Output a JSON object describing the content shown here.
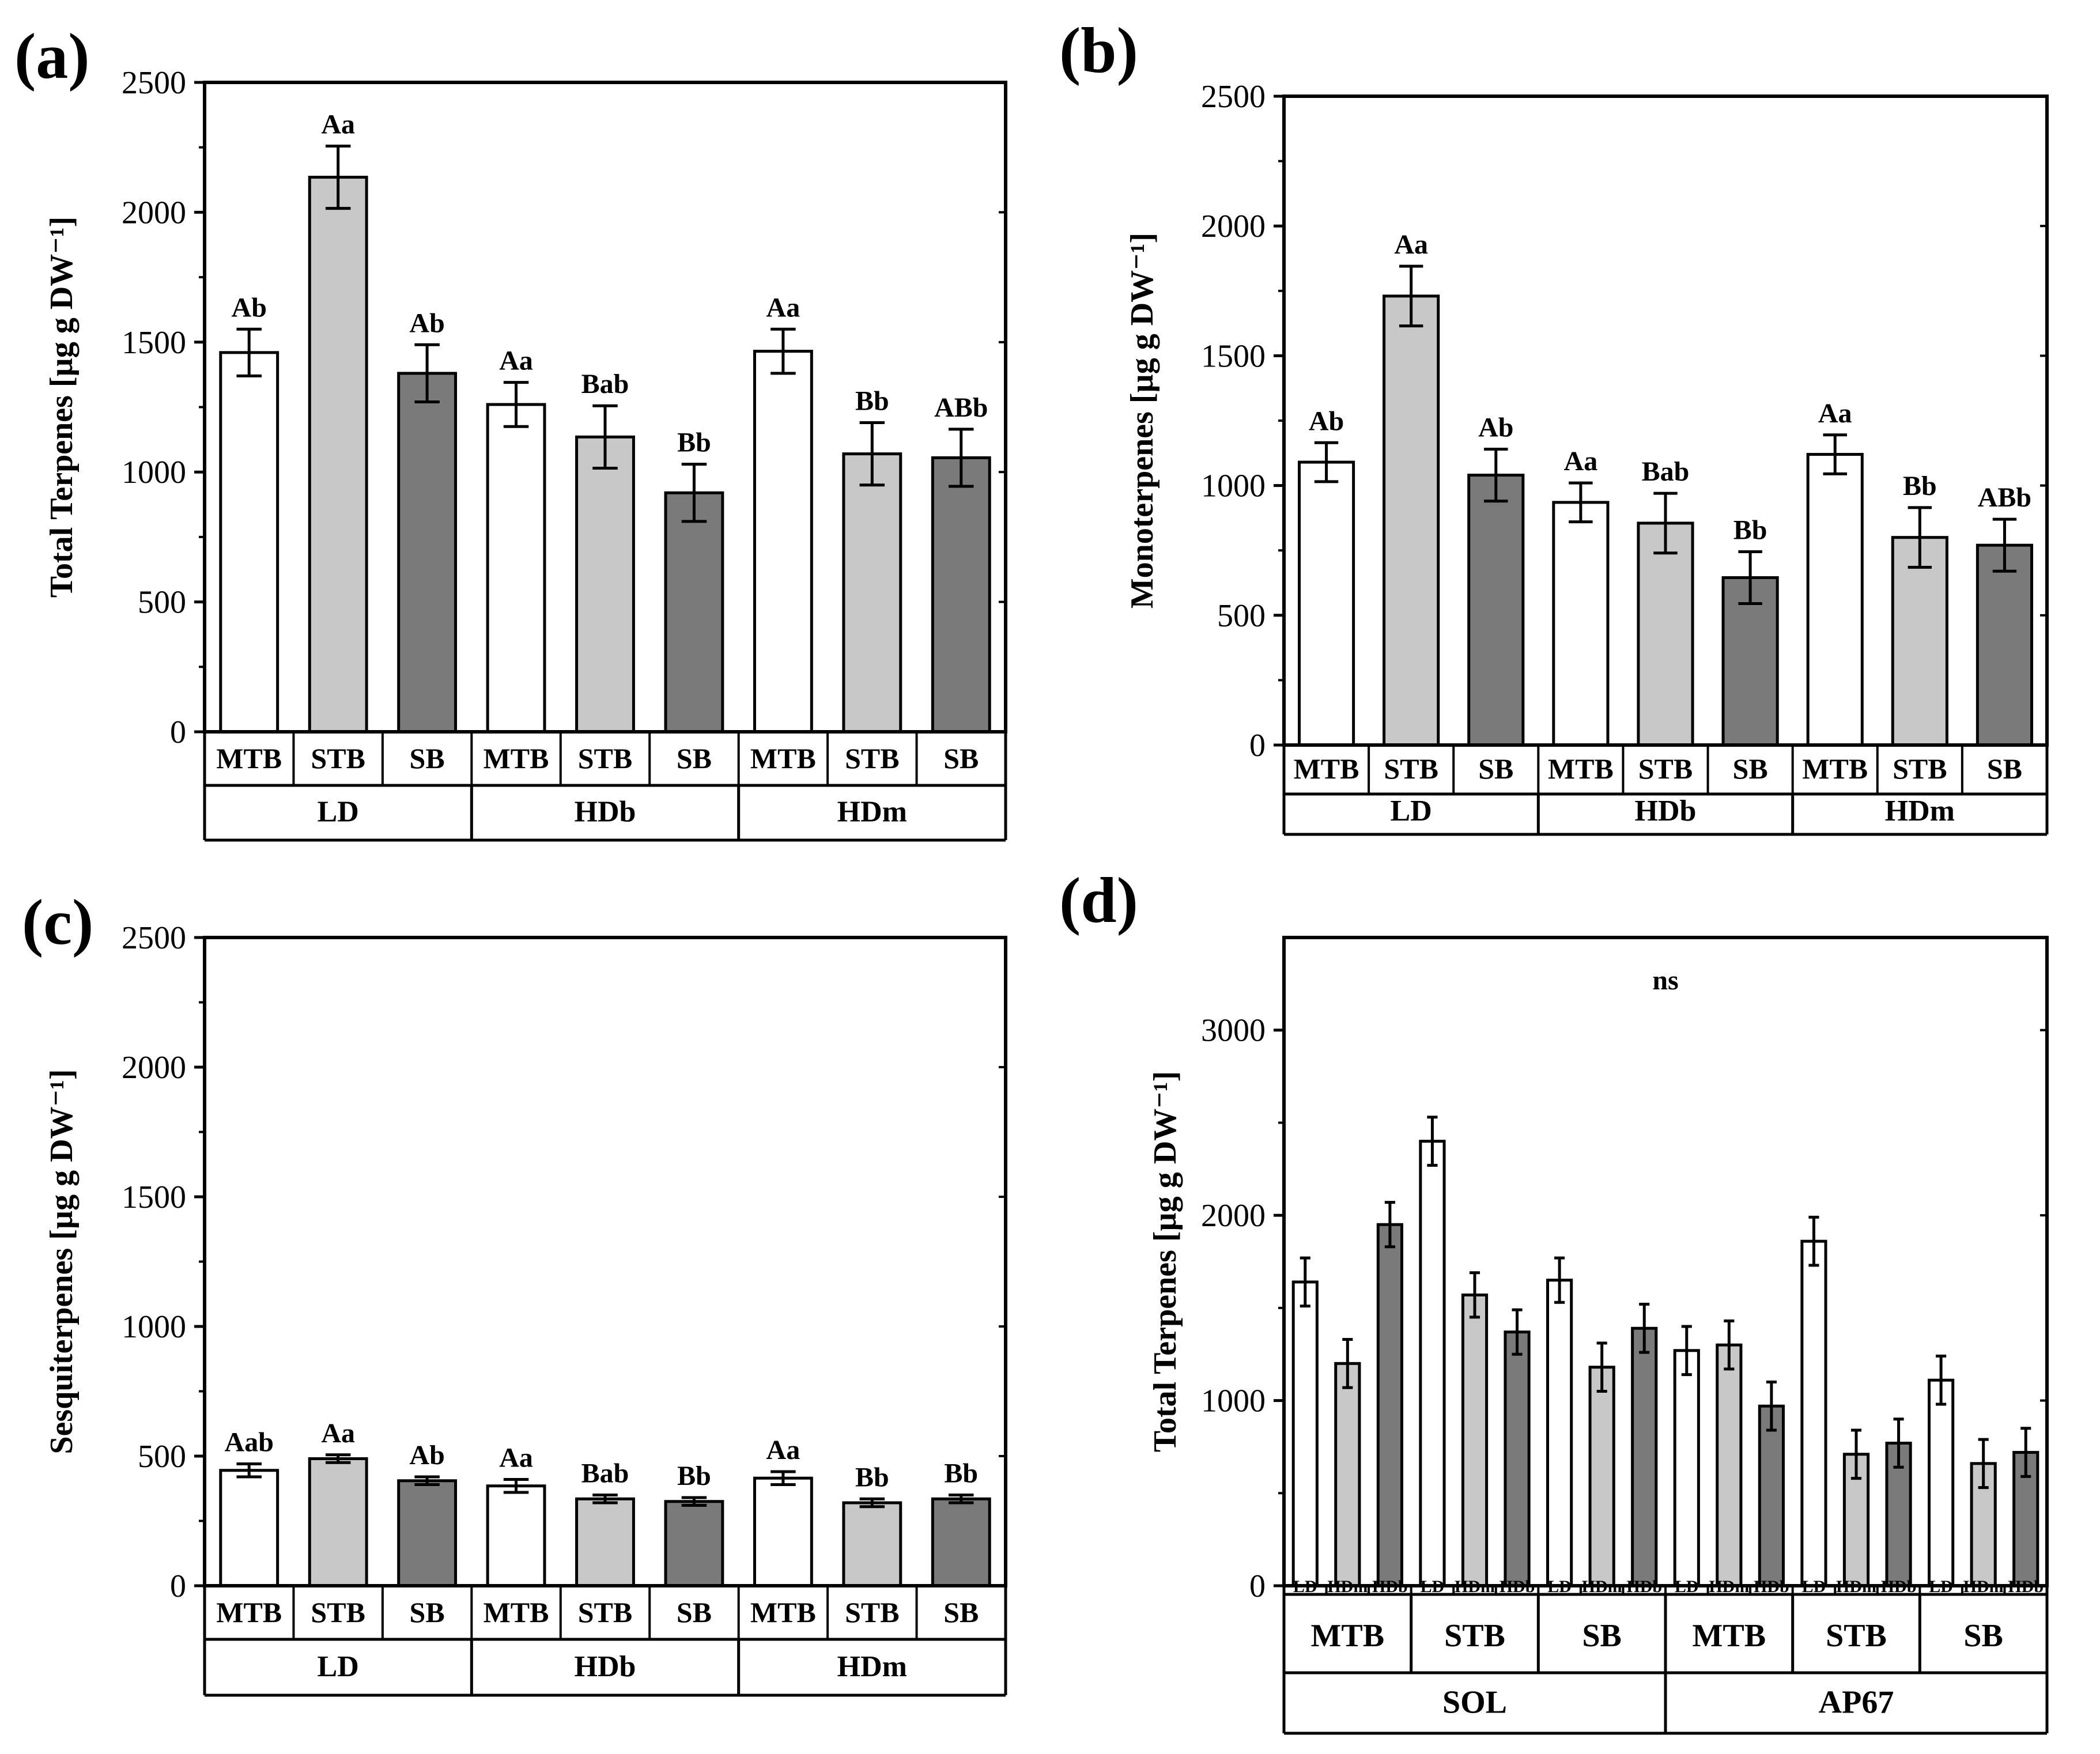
{
  "colors": {
    "white_bar": "#ffffff",
    "light_bar": "#c8c8c8",
    "dark_bar": "#7a7a7a",
    "axis": "#000000"
  },
  "chart_data": [
    {
      "id": "a",
      "panel_label": "(a)",
      "type": "bar",
      "ylabel": "Total Terpenes [µg g DW⁻¹]",
      "ylim": [
        0,
        2500
      ],
      "yticks": [
        0,
        500,
        1000,
        1500,
        2000,
        2500
      ],
      "bars": [
        {
          "group": "LD",
          "category": "MTB",
          "value": 1460,
          "error": 90,
          "sig": "Ab",
          "shade": "white"
        },
        {
          "group": "LD",
          "category": "STB",
          "value": 2135,
          "error": 120,
          "sig": "Aa",
          "shade": "light"
        },
        {
          "group": "LD",
          "category": "SB",
          "value": 1380,
          "error": 110,
          "sig": "Ab",
          "shade": "dark"
        },
        {
          "group": "HDb",
          "category": "MTB",
          "value": 1260,
          "error": 85,
          "sig": "Aa",
          "shade": "white"
        },
        {
          "group": "HDb",
          "category": "STB",
          "value": 1135,
          "error": 120,
          "sig": "Bab",
          "shade": "light"
        },
        {
          "group": "HDb",
          "category": "SB",
          "value": 920,
          "error": 110,
          "sig": "Bb",
          "shade": "dark"
        },
        {
          "group": "HDm",
          "category": "MTB",
          "value": 1465,
          "error": 85,
          "sig": "Aa",
          "shade": "white"
        },
        {
          "group": "HDm",
          "category": "STB",
          "value": 1070,
          "error": 120,
          "sig": "Bb",
          "shade": "light"
        },
        {
          "group": "HDm",
          "category": "SB",
          "value": 1055,
          "error": 110,
          "sig": "ABb",
          "shade": "dark"
        }
      ],
      "groups": [
        "LD",
        "HDb",
        "HDm"
      ]
    },
    {
      "id": "b",
      "panel_label": "(b)",
      "type": "bar",
      "ylabel": "Monoterpenes [µg g DW⁻¹]",
      "ylim": [
        0,
        2500
      ],
      "yticks": [
        0,
        500,
        1000,
        1500,
        2000,
        2500
      ],
      "bars": [
        {
          "group": "LD",
          "category": "MTB",
          "value": 1090,
          "error": 75,
          "sig": "Ab",
          "shade": "white"
        },
        {
          "group": "LD",
          "category": "STB",
          "value": 1730,
          "error": 115,
          "sig": "Aa",
          "shade": "light"
        },
        {
          "group": "LD",
          "category": "SB",
          "value": 1040,
          "error": 100,
          "sig": "Ab",
          "shade": "dark"
        },
        {
          "group": "HDb",
          "category": "MTB",
          "value": 935,
          "error": 75,
          "sig": "Aa",
          "shade": "white"
        },
        {
          "group": "HDb",
          "category": "STB",
          "value": 855,
          "error": 115,
          "sig": "Bab",
          "shade": "light"
        },
        {
          "group": "HDb",
          "category": "SB",
          "value": 645,
          "error": 100,
          "sig": "Bb",
          "shade": "dark"
        },
        {
          "group": "HDm",
          "category": "MTB",
          "value": 1120,
          "error": 75,
          "sig": "Aa",
          "shade": "white"
        },
        {
          "group": "HDm",
          "category": "STB",
          "value": 800,
          "error": 115,
          "sig": "Bb",
          "shade": "light"
        },
        {
          "group": "HDm",
          "category": "SB",
          "value": 770,
          "error": 100,
          "sig": "ABb",
          "shade": "dark"
        }
      ],
      "groups": [
        "LD",
        "HDb",
        "HDm"
      ]
    },
    {
      "id": "c",
      "panel_label": "(c)",
      "type": "bar",
      "ylabel": "Sesquiterpenes [µg g DW⁻¹]",
      "ylim": [
        0,
        2500
      ],
      "yticks": [
        0,
        500,
        1000,
        1500,
        2000,
        2500
      ],
      "bars": [
        {
          "group": "LD",
          "category": "MTB",
          "value": 445,
          "error": 25,
          "sig": "Aab",
          "shade": "white"
        },
        {
          "group": "LD",
          "category": "STB",
          "value": 490,
          "error": 15,
          "sig": "Aa",
          "shade": "light"
        },
        {
          "group": "LD",
          "category": "SB",
          "value": 405,
          "error": 15,
          "sig": "Ab",
          "shade": "dark"
        },
        {
          "group": "HDb",
          "category": "MTB",
          "value": 385,
          "error": 25,
          "sig": "Aa",
          "shade": "white"
        },
        {
          "group": "HDb",
          "category": "STB",
          "value": 335,
          "error": 15,
          "sig": "Bab",
          "shade": "light"
        },
        {
          "group": "HDb",
          "category": "SB",
          "value": 325,
          "error": 15,
          "sig": "Bb",
          "shade": "dark"
        },
        {
          "group": "HDm",
          "category": "MTB",
          "value": 415,
          "error": 25,
          "sig": "Aa",
          "shade": "white"
        },
        {
          "group": "HDm",
          "category": "STB",
          "value": 320,
          "error": 15,
          "sig": "Bb",
          "shade": "light"
        },
        {
          "group": "HDm",
          "category": "SB",
          "value": 335,
          "error": 15,
          "sig": "Bb",
          "shade": "dark"
        }
      ],
      "groups": [
        "LD",
        "HDb",
        "HDm"
      ]
    },
    {
      "id": "d",
      "panel_label": "(d)",
      "type": "bar",
      "annotation": "ns",
      "ylabel": "Total Terpenes [µg g DW⁻¹]",
      "ylim": [
        0,
        3500
      ],
      "yticks": [
        0,
        1000,
        2000,
        3000
      ],
      "bars": [
        {
          "genotype": "SOL",
          "group": "MTB",
          "category": "LD",
          "value": 1640,
          "error": 130,
          "shade": "white"
        },
        {
          "genotype": "SOL",
          "group": "MTB",
          "category": "HDm",
          "value": 1200,
          "error": 130,
          "shade": "light"
        },
        {
          "genotype": "SOL",
          "group": "MTB",
          "category": "HDb",
          "value": 1950,
          "error": 120,
          "shade": "dark"
        },
        {
          "genotype": "SOL",
          "group": "STB",
          "category": "LD",
          "value": 2400,
          "error": 130,
          "shade": "white"
        },
        {
          "genotype": "SOL",
          "group": "STB",
          "category": "HDm",
          "value": 1570,
          "error": 120,
          "shade": "light"
        },
        {
          "genotype": "SOL",
          "group": "STB",
          "category": "HDb",
          "value": 1370,
          "error": 120,
          "shade": "dark"
        },
        {
          "genotype": "SOL",
          "group": "SB",
          "category": "LD",
          "value": 1650,
          "error": 120,
          "shade": "white"
        },
        {
          "genotype": "SOL",
          "group": "SB",
          "category": "HDm",
          "value": 1180,
          "error": 130,
          "shade": "light"
        },
        {
          "genotype": "SOL",
          "group": "SB",
          "category": "HDb",
          "value": 1390,
          "error": 130,
          "shade": "dark"
        },
        {
          "genotype": "AP67",
          "group": "MTB",
          "category": "LD",
          "value": 1270,
          "error": 130,
          "shade": "white"
        },
        {
          "genotype": "AP67",
          "group": "MTB",
          "category": "HDm",
          "value": 1300,
          "error": 130,
          "shade": "light"
        },
        {
          "genotype": "AP67",
          "group": "MTB",
          "category": "HDb",
          "value": 970,
          "error": 130,
          "shade": "dark"
        },
        {
          "genotype": "AP67",
          "group": "STB",
          "category": "LD",
          "value": 1860,
          "error": 130,
          "shade": "white"
        },
        {
          "genotype": "AP67",
          "group": "STB",
          "category": "HDm",
          "value": 710,
          "error": 130,
          "shade": "light"
        },
        {
          "genotype": "AP67",
          "group": "STB",
          "category": "HDb",
          "value": 770,
          "error": 130,
          "shade": "dark"
        },
        {
          "genotype": "AP67",
          "group": "SB",
          "category": "LD",
          "value": 1110,
          "error": 130,
          "shade": "white"
        },
        {
          "genotype": "AP67",
          "group": "SB",
          "category": "HDm",
          "value": 660,
          "error": 130,
          "shade": "light"
        },
        {
          "genotype": "AP67",
          "group": "SB",
          "category": "HDb",
          "value": 720,
          "error": 130,
          "shade": "dark"
        }
      ],
      "groups": [
        "MTB",
        "STB",
        "SB",
        "MTB",
        "STB",
        "SB"
      ],
      "genotypes": [
        "SOL",
        "AP67"
      ]
    }
  ]
}
